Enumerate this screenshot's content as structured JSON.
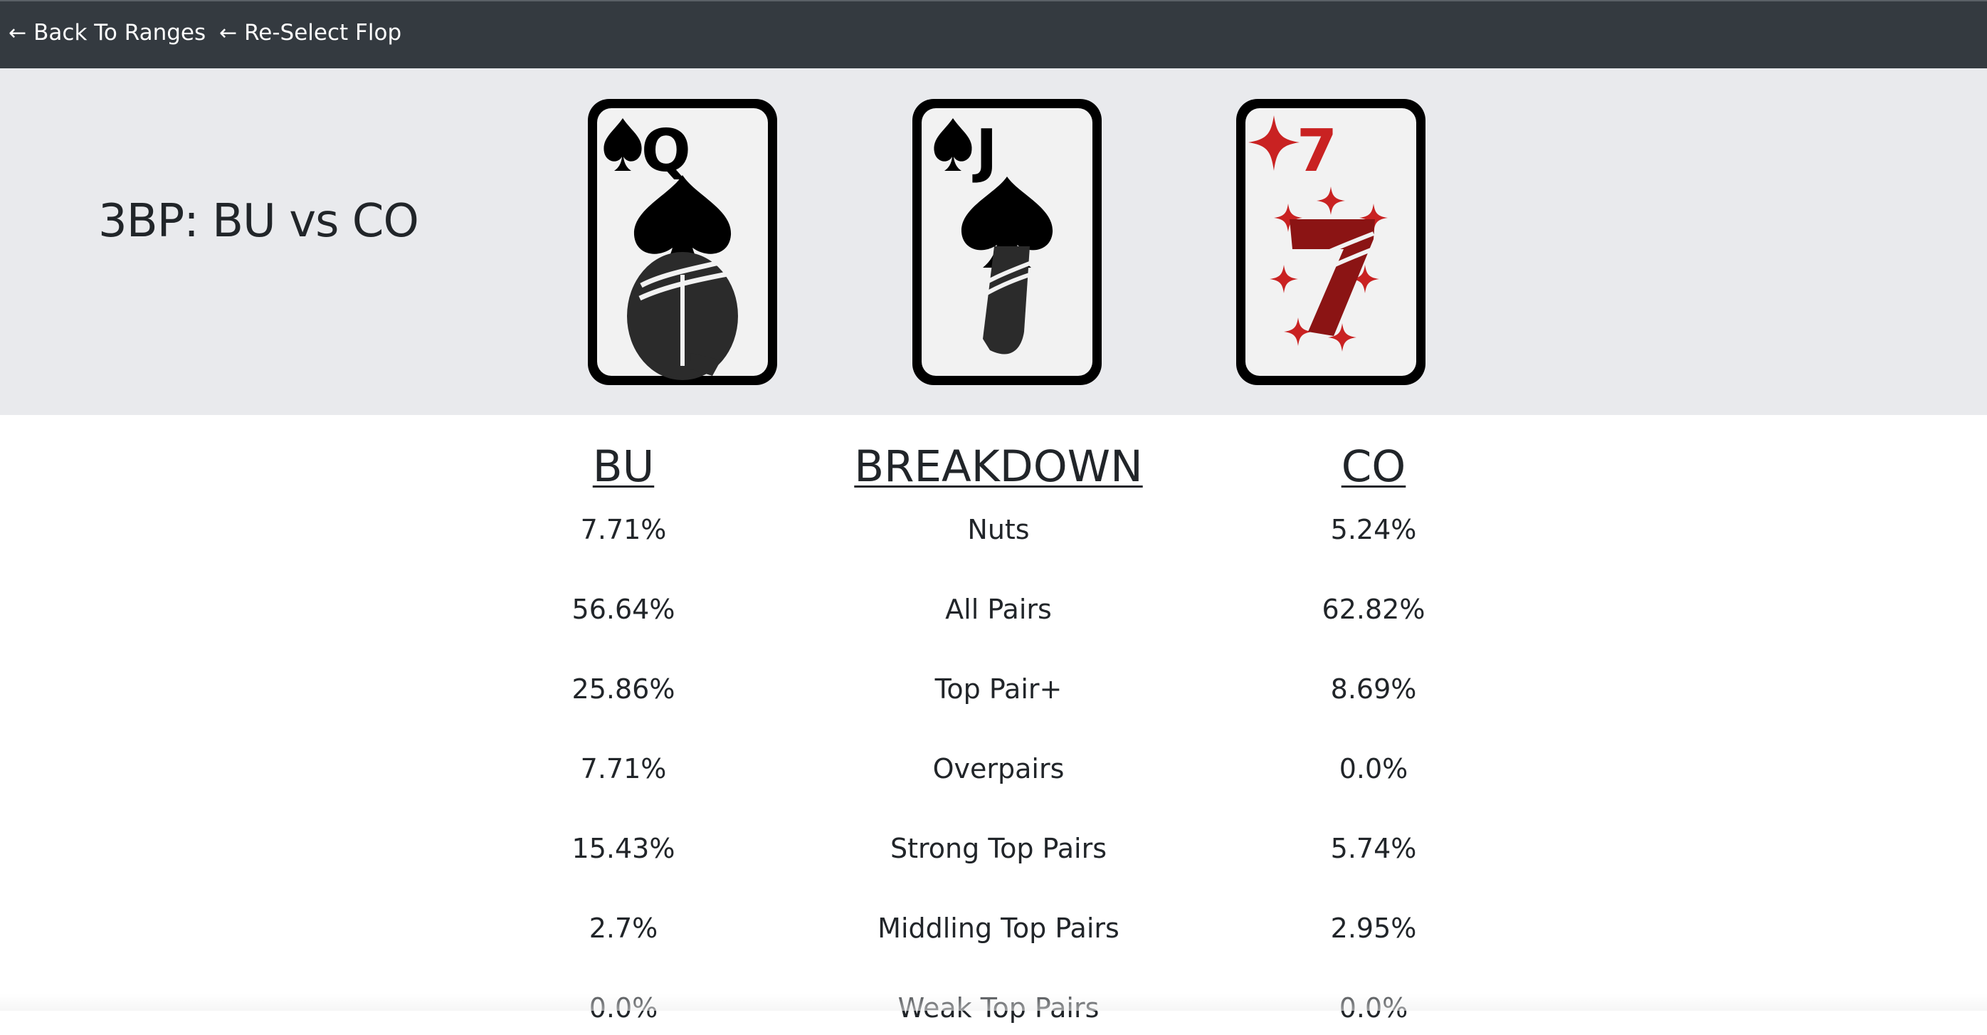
{
  "nav": {
    "back_label": "Back To Ranges",
    "reselect_label": "Re-Select Flop",
    "back_icon": "arrow-left-icon",
    "reselect_icon": "arrow-left-icon"
  },
  "board": {
    "title": "3BP: BU vs CO",
    "cards": [
      {
        "rank": "Q",
        "suit": "spades",
        "color": "#000000"
      },
      {
        "rank": "J",
        "suit": "spades",
        "color": "#000000"
      },
      {
        "rank": "7",
        "suit": "diamonds",
        "color": "#b01e1e"
      }
    ]
  },
  "breakdown": {
    "headers": {
      "bu": "BU",
      "label": "BREAKDOWN",
      "co": "CO"
    },
    "rows": [
      {
        "bu": "7.71%",
        "label": "Nuts",
        "co": "5.24%"
      },
      {
        "bu": "56.64%",
        "label": "All Pairs",
        "co": "62.82%"
      },
      {
        "bu": "25.86%",
        "label": "Top Pair+",
        "co": "8.69%"
      },
      {
        "bu": "7.71%",
        "label": "Overpairs",
        "co": "0.0%"
      },
      {
        "bu": "15.43%",
        "label": "Strong Top Pairs",
        "co": "5.74%"
      },
      {
        "bu": "2.7%",
        "label": "Middling Top Pairs",
        "co": "2.95%"
      },
      {
        "bu": "0.0%",
        "label": "Weak Top Pairs",
        "co": "0.0%"
      }
    ]
  }
}
